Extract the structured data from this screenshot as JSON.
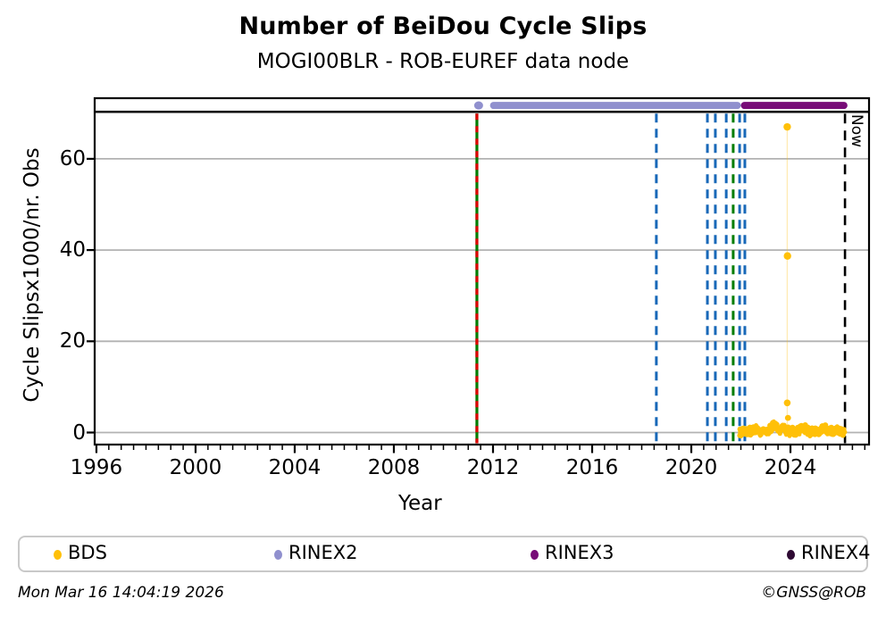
{
  "footer": {
    "timestamp": "Mon Mar 16 14:04:19 2026",
    "credit": "©GNSS@ROB"
  },
  "legend": {
    "items": [
      {
        "label": "BDS",
        "color": "#FFC008"
      },
      {
        "label": "RINEX2",
        "color": "#9090CE"
      },
      {
        "label": "RINEX3",
        "color": "#780C78"
      },
      {
        "label": "RINEX4",
        "color": "#2E0A33"
      }
    ]
  },
  "chart_data": {
    "type": "scatter",
    "title": "Number of BeiDou Cycle Slips",
    "subtitle": "MOGI00BLR - ROB-EUREF data node",
    "xlabel": "Year",
    "ylabel": "Cycle Slipsx1000/nr. Obs",
    "xlim": [
      1995.93,
      2027.17
    ],
    "ylim": [
      -2.64,
      73.29
    ],
    "xticks_major": [
      1996,
      2000,
      2004,
      2008,
      2012,
      2016,
      2020,
      2024
    ],
    "xtick_minor_step": 0.5,
    "yticks": [
      0,
      20,
      40,
      60
    ],
    "grid": "horizontal-gray",
    "grid_color": "#b2b2b2",
    "divider_value": 70.3,
    "availability_bar_value": 71.7,
    "availability_bars": [
      {
        "name": "RINEX2",
        "color": "#9090CE",
        "start": 2011.88,
        "end": 2022.0,
        "lone_marker_x": 2011.42
      },
      {
        "name": "RINEX3",
        "color": "#780C78",
        "start": 2022.0,
        "end": 2026.3,
        "lone_marker_x": null
      }
    ],
    "event_lines": [
      {
        "x": 2011.35,
        "color": "#007D00",
        "dash": null,
        "width": 3.2,
        "name": "event-green-solid"
      },
      {
        "x": 2011.35,
        "color": "#DE0000",
        "dash": "7 7",
        "width": 3.2,
        "name": "event-red-dash-overlay"
      },
      {
        "x": 2018.59,
        "color": "#1868B8",
        "dash": "10 7",
        "width": 3.0,
        "name": "event-blue-dash"
      },
      {
        "x": 2020.65,
        "color": "#1868B8",
        "dash": "10 7",
        "width": 3.0,
        "name": "event-blue-dash"
      },
      {
        "x": 2020.97,
        "color": "#1868B8",
        "dash": "10 7",
        "width": 3.0,
        "name": "event-blue-dash"
      },
      {
        "x": 2021.41,
        "color": "#1868B8",
        "dash": "10 7",
        "width": 3.0,
        "name": "event-blue-dash"
      },
      {
        "x": 2021.69,
        "color": "#007D00",
        "dash": "10 7",
        "width": 3.0,
        "name": "event-green-dash"
      },
      {
        "x": 2021.95,
        "color": "#1868B8",
        "dash": "10 7",
        "width": 3.0,
        "name": "event-blue-dash"
      },
      {
        "x": 2022.16,
        "color": "#1868B8",
        "dash": "10 7",
        "width": 3.0,
        "name": "event-blue-dash"
      }
    ],
    "now_line": {
      "x": 2026.2,
      "label": "Now",
      "color": "#000000",
      "dash": "11 8",
      "width": 2.6
    },
    "series": [
      {
        "name": "BDS",
        "color": "#FFC008",
        "outliers": [
          [
            2023.87,
            67.0
          ],
          [
            2023.88,
            38.7
          ],
          [
            2023.87,
            6.5
          ],
          [
            2023.9,
            3.2
          ]
        ],
        "stem": {
          "x": 2023.87,
          "y_top": 67.0,
          "y_bottom": 0.3,
          "opacity": 0.3
        },
        "band": {
          "x_start": 2021.95,
          "x_end": 2026.2,
          "count": 460,
          "base": 0.2,
          "jitter": 1.1,
          "seed": 7,
          "bumps": [
            [
              2022.55,
              0.7,
              0.1
            ],
            [
              2023.35,
              2.0,
              0.12
            ],
            [
              2023.7,
              1.3,
              0.07
            ],
            [
              2024.55,
              0.9,
              0.12
            ],
            [
              2025.35,
              1.0,
              0.1
            ],
            [
              2025.85,
              0.6,
              0.06
            ]
          ]
        }
      },
      {
        "name": "RINEX2",
        "color": "#9090CE"
      },
      {
        "name": "RINEX3",
        "color": "#780C78"
      },
      {
        "name": "RINEX4",
        "color": "#2E0A33"
      }
    ]
  }
}
